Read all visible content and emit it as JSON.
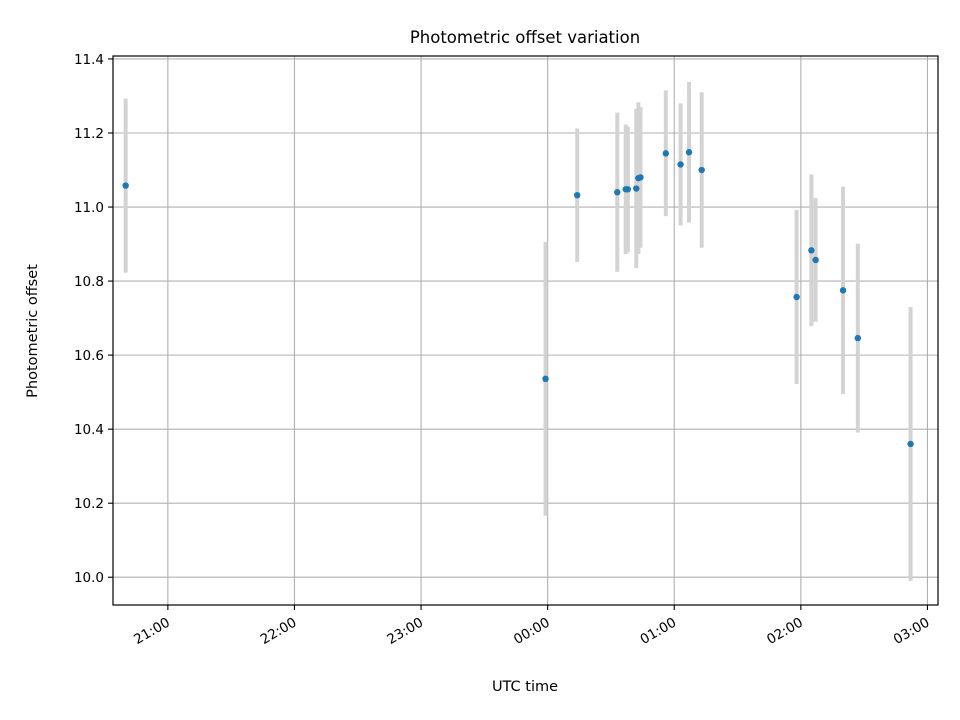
{
  "chart_data": {
    "type": "scatter",
    "title": "Photometric offset variation",
    "xlabel": "UTC time",
    "ylabel": "Photometric offset",
    "x_axis": {
      "kind": "time",
      "range": [
        "20:34",
        "03:05"
      ],
      "ticks": [
        "21:00",
        "22:00",
        "23:00",
        "00:00",
        "01:00",
        "02:00",
        "03:00"
      ]
    },
    "y_axis": {
      "range": [
        9.925,
        11.408
      ],
      "ticks": [
        "10.0",
        "10.2",
        "10.4",
        "10.6",
        "10.8",
        "11.0",
        "11.2",
        "11.4"
      ]
    },
    "grid": true,
    "legend": "none",
    "colors": {
      "point": "#1f77b4",
      "errorbar": "#d3d3d3",
      "grid": "#b0b0b0"
    },
    "points": [
      {
        "time": "20:40",
        "y": 11.058,
        "yerr": 0.235
      },
      {
        "time": "23:59",
        "y": 10.536,
        "yerr": 0.37
      },
      {
        "time": "00:14",
        "y": 11.032,
        "yerr": 0.18
      },
      {
        "time": "00:33",
        "y": 11.04,
        "yerr": 0.215
      },
      {
        "time": "00:37",
        "y": 11.048,
        "yerr": 0.175
      },
      {
        "time": "00:38",
        "y": 11.048,
        "yerr": 0.17
      },
      {
        "time": "00:42",
        "y": 11.05,
        "yerr": 0.215
      },
      {
        "time": "00:43",
        "y": 11.078,
        "yerr": 0.205
      },
      {
        "time": "00:44",
        "y": 11.08,
        "yerr": 0.19
      },
      {
        "time": "00:56",
        "y": 11.145,
        "yerr": 0.17
      },
      {
        "time": "01:03",
        "y": 11.115,
        "yerr": 0.165
      },
      {
        "time": "01:07",
        "y": 11.148,
        "yerr": 0.19
      },
      {
        "time": "01:13",
        "y": 11.1,
        "yerr": 0.21
      },
      {
        "time": "01:58",
        "y": 10.757,
        "yerr": 0.235
      },
      {
        "time": "02:05",
        "y": 10.883,
        "yerr": 0.205
      },
      {
        "time": "02:07",
        "y": 10.857,
        "yerr": 0.167
      },
      {
        "time": "02:20",
        "y": 10.775,
        "yerr": 0.28
      },
      {
        "time": "02:27",
        "y": 10.646,
        "yerr": 0.255
      },
      {
        "time": "02:52",
        "y": 10.36,
        "yerr": 0.37
      }
    ]
  }
}
